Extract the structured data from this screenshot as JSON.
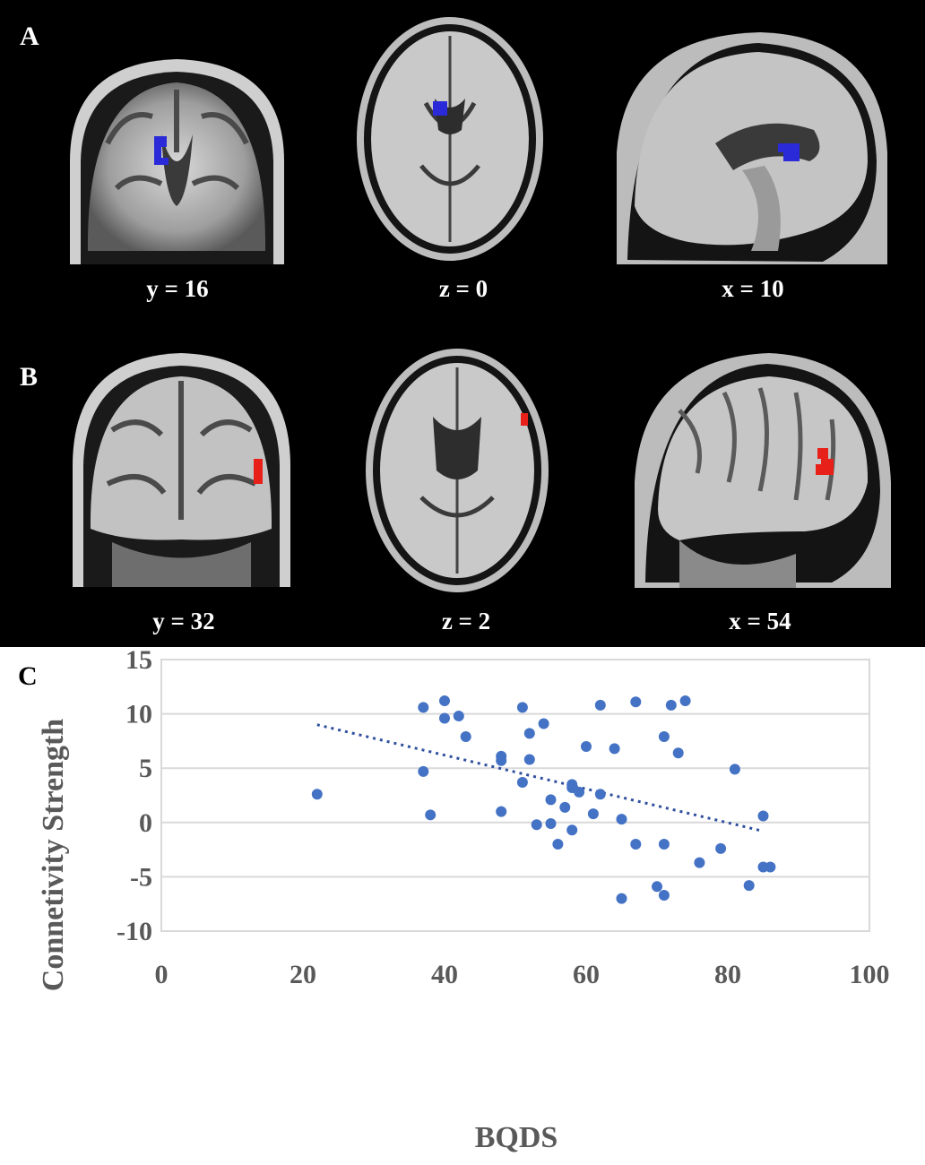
{
  "panels": {
    "a": {
      "letter": "A",
      "labels": [
        "y = 16",
        "z = 0",
        "x = 10"
      ],
      "cluster_color": "#2a2ad8"
    },
    "b": {
      "letter": "B",
      "labels": [
        "y = 32",
        "z = 2",
        "x = 54"
      ],
      "cluster_color": "#e8201a"
    },
    "c": {
      "letter": "C"
    }
  },
  "chart_data": {
    "type": "scatter",
    "xlabel": "BQDS",
    "ylabel": "Connetivity Strength",
    "xlim": [
      0,
      100
    ],
    "ylim": [
      -10,
      15
    ],
    "xticks": [
      "0",
      "20",
      "40",
      "60",
      "80",
      "100"
    ],
    "yticks": [
      "15",
      "10",
      "5",
      "0",
      "-5",
      "-10"
    ],
    "grid": "horizontal",
    "point_color": "#4472c4",
    "trendline": {
      "style": "dotted",
      "x": [
        22,
        85
      ],
      "y": [
        9.0,
        -0.8
      ]
    },
    "points": [
      {
        "x": 22,
        "y": 2.6
      },
      {
        "x": 37,
        "y": 10.6
      },
      {
        "x": 37,
        "y": 4.7
      },
      {
        "x": 38,
        "y": 0.7
      },
      {
        "x": 40,
        "y": 11.2
      },
      {
        "x": 40,
        "y": 9.6
      },
      {
        "x": 42,
        "y": 9.8
      },
      {
        "x": 43,
        "y": 7.9
      },
      {
        "x": 48,
        "y": 6.1
      },
      {
        "x": 48,
        "y": 5.7
      },
      {
        "x": 48,
        "y": 1.0
      },
      {
        "x": 51,
        "y": 10.6
      },
      {
        "x": 51,
        "y": 3.7
      },
      {
        "x": 52,
        "y": 8.2
      },
      {
        "x": 52,
        "y": 5.8
      },
      {
        "x": 53,
        "y": -0.2
      },
      {
        "x": 54,
        "y": 9.1
      },
      {
        "x": 55,
        "y": 2.1
      },
      {
        "x": 55,
        "y": -0.1
      },
      {
        "x": 56,
        "y": -2.0
      },
      {
        "x": 57,
        "y": 1.4
      },
      {
        "x": 58,
        "y": 3.5
      },
      {
        "x": 58,
        "y": 3.2
      },
      {
        "x": 58,
        "y": -0.7
      },
      {
        "x": 59,
        "y": 2.8
      },
      {
        "x": 60,
        "y": 7.0
      },
      {
        "x": 61,
        "y": 0.8
      },
      {
        "x": 62,
        "y": 10.8
      },
      {
        "x": 62,
        "y": 2.6
      },
      {
        "x": 64,
        "y": 6.8
      },
      {
        "x": 65,
        "y": 0.3
      },
      {
        "x": 65,
        "y": -7.0
      },
      {
        "x": 67,
        "y": 11.1
      },
      {
        "x": 67,
        "y": -2.0
      },
      {
        "x": 70,
        "y": -5.9
      },
      {
        "x": 71,
        "y": 7.9
      },
      {
        "x": 71,
        "y": -2.0
      },
      {
        "x": 71,
        "y": -6.7
      },
      {
        "x": 72,
        "y": 10.8
      },
      {
        "x": 73,
        "y": 6.4
      },
      {
        "x": 74,
        "y": 11.2
      },
      {
        "x": 76,
        "y": -3.7
      },
      {
        "x": 79,
        "y": -2.4
      },
      {
        "x": 81,
        "y": 4.9
      },
      {
        "x": 83,
        "y": -5.8
      },
      {
        "x": 85,
        "y": 0.6
      },
      {
        "x": 85,
        "y": -4.1
      },
      {
        "x": 86,
        "y": -4.1
      }
    ]
  }
}
